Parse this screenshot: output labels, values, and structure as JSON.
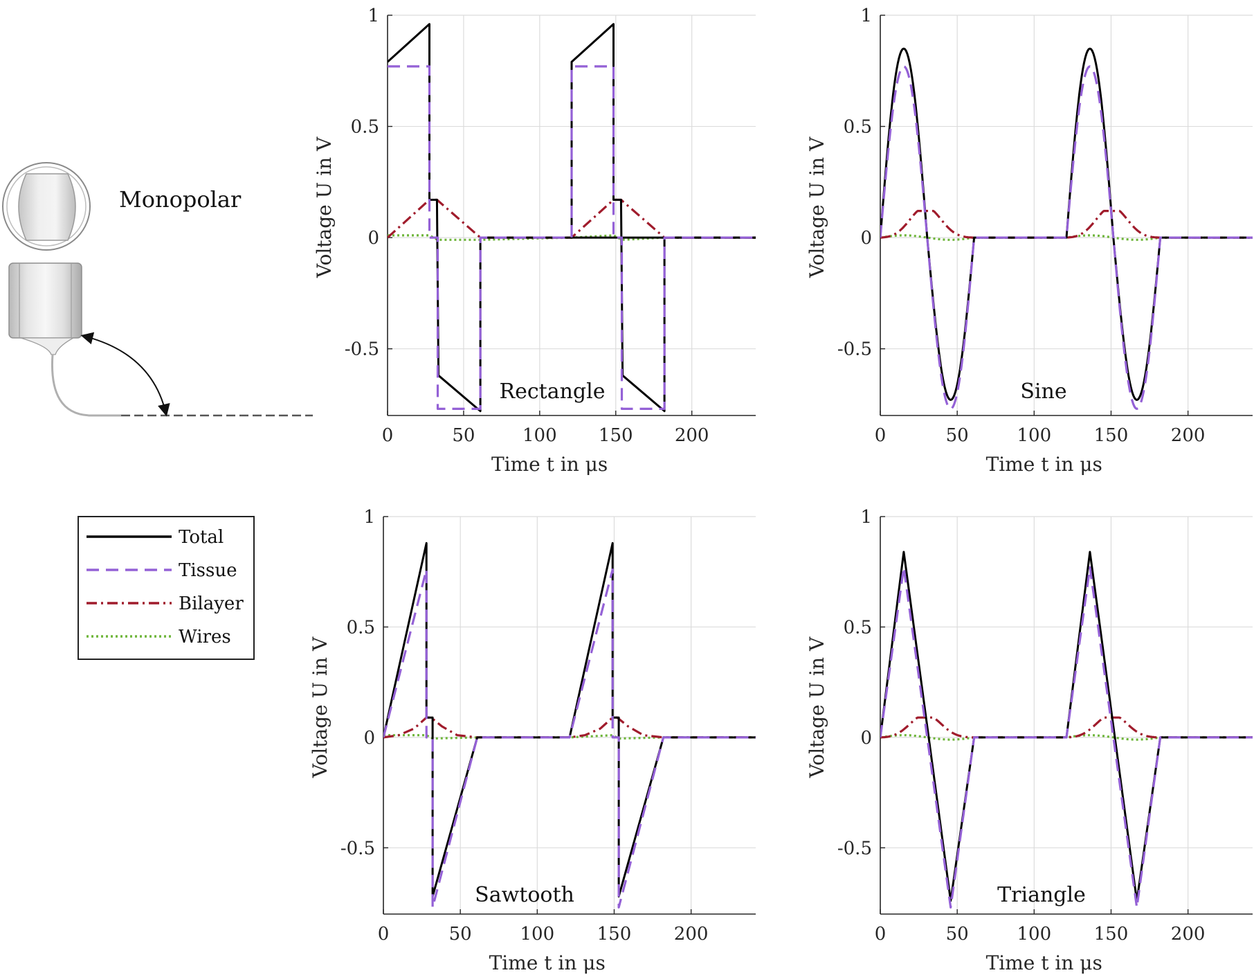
{
  "figure": {
    "illustration_label": "Monopolar",
    "legend": {
      "entries": [
        {
          "name": "Total",
          "color": "#000000",
          "dash": "solid"
        },
        {
          "name": "Tissue",
          "color": "#9461d6",
          "dash": "dashed"
        },
        {
          "name": "Bilayer",
          "color": "#a01c2c",
          "dash": "dashdot"
        },
        {
          "name": "Wires",
          "color": "#6eb53a",
          "dash": "dotted"
        }
      ]
    }
  },
  "chart_data": [
    {
      "type": "line",
      "panel_label": "Rectangle",
      "title": "",
      "xlabel": "Time t in μs",
      "ylabel": "Voltage U in V",
      "xlim": [
        0,
        242
      ],
      "ylim": [
        -0.8,
        1
      ],
      "xticks": [
        "0",
        "50",
        "100",
        "150",
        "200"
      ],
      "yticks": [
        "-0.5",
        "0",
        "0.5",
        "1"
      ],
      "grid": true,
      "series": [
        {
          "name": "Total",
          "color": "#000000",
          "dash": "solid",
          "x": [
            0,
            27.5,
            27.5,
            32.5,
            33.5,
            61,
            61,
            242
          ],
          "y": [
            0.79,
            0.96,
            0.17,
            0.17,
            -0.62,
            -0.78,
            0,
            0
          ],
          "x2": [
            121,
            121,
            148.5,
            148.5,
            153.5,
            154.5,
            182,
            182,
            242
          ],
          "y2": [
            0,
            0.79,
            0.96,
            0.17,
            0.17,
            -0.62,
            -0.78,
            0,
            0
          ]
        },
        {
          "name": "Tissue",
          "color": "#9461d6",
          "dash": "dashed",
          "x": [
            0,
            27.5,
            27.5,
            33,
            33,
            61,
            61,
            121,
            121,
            148.5,
            148.5,
            154,
            154,
            182,
            182,
            242
          ],
          "y": [
            0.77,
            0.77,
            0.0,
            0.0,
            -0.77,
            -0.77,
            0,
            0,
            0.77,
            0.77,
            0.0,
            0.0,
            -0.77,
            -0.77,
            0,
            0
          ]
        },
        {
          "name": "Bilayer",
          "color": "#a01c2c",
          "dash": "dashdot",
          "x": [
            0,
            27.5,
            32.5,
            61,
            121,
            148.5,
            153.5,
            182,
            242
          ],
          "y": [
            0,
            0.17,
            0.17,
            0,
            0,
            0.17,
            0.17,
            0,
            0
          ]
        },
        {
          "name": "Wires",
          "color": "#6eb53a",
          "dash": "dotted",
          "x": [
            0,
            27.5,
            33,
            61,
            121,
            148.5,
            154,
            182,
            242
          ],
          "y": [
            0.01,
            0.01,
            -0.01,
            -0.01,
            0,
            0.01,
            -0.01,
            0,
            0
          ]
        }
      ]
    },
    {
      "type": "line",
      "panel_label": "Sine",
      "title": "",
      "xlabel": "Time t in μs",
      "ylabel": "Voltage U in V",
      "xlim": [
        0,
        242
      ],
      "ylim": [
        -0.8,
        1
      ],
      "xticks": [
        "0",
        "50",
        "100",
        "150",
        "200"
      ],
      "yticks": [
        "-0.5",
        "0",
        "0.5",
        "1"
      ],
      "grid": true,
      "series": [
        {
          "name": "Total",
          "color": "#000000",
          "dash": "solid",
          "func": "sine",
          "amp_pos": 0.85,
          "amp_neg": 0.73,
          "period": 61,
          "starts": [
            0,
            121
          ]
        },
        {
          "name": "Tissue",
          "color": "#9461d6",
          "dash": "dashed",
          "func": "sine",
          "amp_pos": 0.77,
          "amp_neg": 0.77,
          "period": 61,
          "starts": [
            0,
            121
          ]
        },
        {
          "name": "Bilayer",
          "color": "#a01c2c",
          "dash": "dashdot",
          "func": "bump",
          "peak": 0.12,
          "center": 29,
          "width": 61,
          "starts": [
            0,
            121
          ]
        },
        {
          "name": "Wires",
          "color": "#6eb53a",
          "dash": "dotted",
          "func": "small",
          "peak": 0.01,
          "period": 61,
          "starts": [
            0,
            121
          ]
        }
      ]
    },
    {
      "type": "line",
      "panel_label": "Sawtooth",
      "title": "",
      "xlabel": "Time t in μs",
      "ylabel": "Voltage U in V",
      "xlim": [
        0,
        242
      ],
      "ylim": [
        -0.8,
        1
      ],
      "xticks": [
        "0",
        "50",
        "100",
        "150",
        "200"
      ],
      "yticks": [
        "-0.5",
        "0",
        "0.5",
        "1"
      ],
      "grid": true,
      "series": [
        {
          "name": "Total",
          "color": "#000000",
          "dash": "solid",
          "x": [
            0,
            28,
            28,
            32,
            32,
            61,
            121,
            149,
            149,
            153,
            153,
            182,
            242
          ],
          "y": [
            0,
            0.88,
            0.09,
            0.09,
            -0.72,
            0,
            0,
            0.88,
            0.09,
            0.09,
            -0.72,
            0,
            0
          ]
        },
        {
          "name": "Tissue",
          "color": "#9461d6",
          "dash": "dashed",
          "x": [
            0,
            28,
            28,
            32,
            32,
            61,
            121,
            149,
            149,
            153,
            153,
            182,
            242
          ],
          "y": [
            0,
            0.76,
            0.0,
            0.0,
            -0.77,
            0,
            0,
            0.76,
            0.0,
            0.0,
            -0.77,
            0,
            0
          ]
        },
        {
          "name": "Bilayer",
          "color": "#a01c2c",
          "dash": "dashdot",
          "x": [
            0,
            10,
            20,
            28,
            31,
            38,
            48,
            61,
            121,
            131,
            141,
            149,
            152,
            159,
            169,
            182,
            242
          ],
          "y": [
            0,
            0.01,
            0.04,
            0.09,
            0.09,
            0.05,
            0.01,
            0,
            0,
            0.01,
            0.04,
            0.09,
            0.09,
            0.05,
            0.01,
            0,
            0
          ]
        },
        {
          "name": "Wires",
          "color": "#6eb53a",
          "dash": "dotted",
          "x": [
            0,
            28,
            32,
            61,
            121,
            149,
            153,
            182,
            242
          ],
          "y": [
            0.01,
            0.01,
            -0.005,
            0,
            0,
            0.01,
            -0.005,
            0,
            0
          ]
        }
      ]
    },
    {
      "type": "line",
      "panel_label": "Triangle",
      "title": "",
      "xlabel": "Time t in μs",
      "ylabel": "Voltage U in V",
      "xlim": [
        0,
        242
      ],
      "ylim": [
        -0.8,
        1
      ],
      "xticks": [
        "0",
        "50",
        "100",
        "150",
        "200"
      ],
      "yticks": [
        "-0.5",
        "0",
        "0.5",
        "1"
      ],
      "grid": true,
      "series": [
        {
          "name": "Total",
          "color": "#000000",
          "dash": "solid",
          "x": [
            0,
            15.25,
            45.75,
            61,
            121,
            136.25,
            166.75,
            182,
            242
          ],
          "y": [
            0,
            0.84,
            -0.74,
            0,
            0,
            0.84,
            -0.74,
            0,
            0
          ]
        },
        {
          "name": "Tissue",
          "color": "#9461d6",
          "dash": "dashed",
          "x": [
            0,
            15.25,
            45.75,
            61,
            121,
            136.25,
            166.75,
            182,
            242
          ],
          "y": [
            0,
            0.77,
            -0.77,
            0,
            0,
            0.77,
            -0.77,
            0,
            0
          ]
        },
        {
          "name": "Bilayer",
          "color": "#a01c2c",
          "dash": "dashdot",
          "func": "bump",
          "peak": 0.09,
          "center": 29,
          "width": 61,
          "starts": [
            0,
            121
          ]
        },
        {
          "name": "Wires",
          "color": "#6eb53a",
          "dash": "dotted",
          "func": "small",
          "peak": 0.01,
          "period": 61,
          "starts": [
            0,
            121
          ]
        }
      ]
    }
  ]
}
